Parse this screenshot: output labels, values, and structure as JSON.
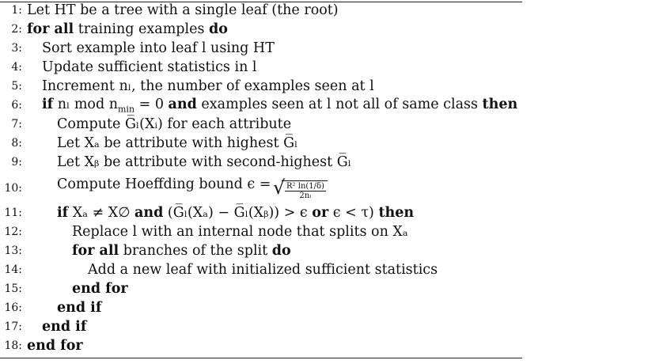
{
  "algorithm": {
    "lines": [
      {
        "n": "1:",
        "text": "Let HT be a tree with a single leaf (the root)"
      },
      {
        "n": "2:",
        "kw1": "for all",
        "text": " training examples ",
        "kw2": "do"
      },
      {
        "n": "3:",
        "text": "Sort example into leaf l using HT"
      },
      {
        "n": "4:",
        "text": "Update sufficient statistics in l"
      },
      {
        "n": "5:",
        "text": "Increment nₗ, the number of examples seen at l"
      },
      {
        "n": "6:",
        "kw1": "if",
        "text1": " nₗ mod n",
        "sub": "min",
        "text2": " = 0 ",
        "kw2": "and",
        "text3": " examples seen at l not all of same class ",
        "kw3": "then"
      },
      {
        "n": "7:",
        "text": "Compute G̅ₗ(Xᵢ) for each attribute"
      },
      {
        "n": "8:",
        "text": "Let Xₐ be attribute with highest G̅ₗ"
      },
      {
        "n": "9:",
        "text": "Let Xᵦ be attribute with second-highest G̅ₗ"
      },
      {
        "n": "10:",
        "text": "Compute Hoeffding bound ϵ =",
        "frac_num": "R² ln(1/δ)",
        "frac_den": "2nₗ"
      },
      {
        "n": "11:",
        "kw1": "if",
        "text1": " Xₐ ≠ X∅ ",
        "kw2": "and",
        "text2": " (G̅ₗ(Xₐ) − G̅ₗ(Xᵦ)) > ϵ ",
        "kw3": "or",
        "text3": " ϵ < τ) ",
        "kw4": "then"
      },
      {
        "n": "12:",
        "text": "Replace l with an internal node that splits on Xₐ"
      },
      {
        "n": "13:",
        "kw1": "for all",
        "text": " branches of the split ",
        "kw2": "do"
      },
      {
        "n": "14:",
        "text": "Add a new leaf with initialized sufficient statistics"
      },
      {
        "n": "15:",
        "kw1": "end for"
      },
      {
        "n": "16:",
        "kw1": "end if"
      },
      {
        "n": "17:",
        "kw1": "end if"
      },
      {
        "n": "18:",
        "kw1": "end for"
      }
    ]
  }
}
